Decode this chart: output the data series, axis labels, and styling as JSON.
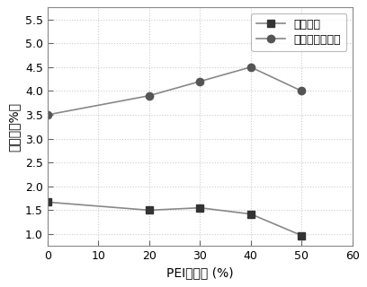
{
  "x": [
    0,
    20,
    30,
    40,
    50
  ],
  "water_adsorption": [
    1.67,
    1.5,
    1.55,
    1.42,
    0.97
  ],
  "co2_adsorption": [
    3.5,
    3.9,
    4.2,
    4.5,
    4.0
  ],
  "xlabel": "PEI担载量 (%)",
  "ylabel": "吸附量（%）",
  "legend_water": "水吸附量",
  "legend_co2": "二氧化碳吸附量",
  "xlim": [
    0,
    60
  ],
  "ylim": [
    0.75,
    5.75
  ],
  "xticks": [
    0,
    10,
    20,
    30,
    40,
    50,
    60
  ],
  "yticks": [
    1.0,
    1.5,
    2.0,
    2.5,
    3.0,
    3.5,
    4.0,
    4.5,
    5.0,
    5.5
  ],
  "line_color": "#888888",
  "marker_water": "s",
  "marker_co2": "o",
  "marker_color_water": "#333333",
  "marker_color_co2": "#555555",
  "marker_size": 6,
  "background_color": "#ffffff",
  "grid_color": "#cccccc",
  "tick_fontsize": 9,
  "label_fontsize": 10,
  "legend_fontsize": 9
}
